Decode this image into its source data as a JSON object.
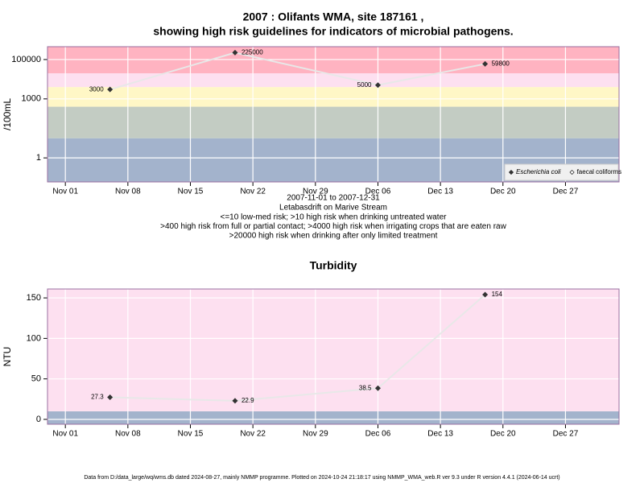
{
  "chart_data": [
    {
      "type": "line",
      "title": "2007 : Olifants WMA, site 187161 ,",
      "subtitle": "showing high risk guidelines for indicators of microbial pathogens.",
      "xlabel": "2007-11-01 to 2007-12-31",
      "notes": [
        "Letabasdrift on Marive Stream",
        "<=10 low-med risk; >10 high risk when drinking untreated water",
        ">400 high risk from full or partial contact; >4000 high risk when irrigating crops that are eaten raw",
        ">20000 high risk when drinking after only limited treatment"
      ],
      "ylabel": "/100mL",
      "log_y": true,
      "x": [
        "2007-11-06",
        "2007-11-20",
        "2007-12-06",
        "2007-12-18"
      ],
      "series": [
        {
          "name": "Escherichia coli",
          "color": "#333333",
          "values": [
            3000,
            225000,
            5000,
            59800
          ]
        },
        {
          "name": "faecal coliforms",
          "color": "#333333",
          "values": [
            null,
            null,
            null,
            null
          ]
        }
      ],
      "bands": [
        {
          "from": 0.06,
          "to": 10,
          "color": "#a3b3cc"
        },
        {
          "from": 10,
          "to": 400,
          "color": "#c3ccc3"
        },
        {
          "from": 400,
          "to": 4000,
          "color": "#fff7c6"
        },
        {
          "from": 4000,
          "to": 20000,
          "color": "#fde0f0"
        },
        {
          "from": 20000,
          "to": 450000,
          "color": "#ffb3c1"
        }
      ],
      "xlim": [
        "2007-10-30",
        "2008-01-02"
      ],
      "ylim": [
        0.06,
        450000
      ],
      "yticks": [
        1,
        1000,
        100000
      ],
      "xticks": [
        {
          "value": "2007-11-01",
          "label": "Nov 01"
        },
        {
          "value": "2007-11-08",
          "label": "Nov 08"
        },
        {
          "value": "2007-11-15",
          "label": "Nov 15"
        },
        {
          "value": "2007-11-22",
          "label": "Nov 22"
        },
        {
          "value": "2007-11-29",
          "label": "Nov 29"
        },
        {
          "value": "2007-12-06",
          "label": "Dec 06"
        },
        {
          "value": "2007-12-13",
          "label": "Dec 13"
        },
        {
          "value": "2007-12-20",
          "label": "Dec 20"
        },
        {
          "value": "2007-12-27",
          "label": "Dec 27"
        }
      ],
      "grid": true,
      "legend": "bottom-right"
    },
    {
      "type": "line",
      "title": "Turbidity",
      "ylabel": "NTU",
      "x": [
        "2007-11-06",
        "2007-11-20",
        "2007-12-06",
        "2007-12-18"
      ],
      "series": [
        {
          "name": "Turbidity",
          "color": "#333333",
          "values": [
            27.3,
            22.9,
            38.5,
            154
          ]
        }
      ],
      "bands": [
        {
          "from": -6,
          "to": 10,
          "color": "#a3b3cc"
        },
        {
          "from": 10,
          "to": 161,
          "color": "#fde0f0"
        }
      ],
      "xlim": [
        "2007-10-30",
        "2008-01-02"
      ],
      "ylim": [
        -6,
        161
      ],
      "yticks": [
        0,
        50,
        100,
        150
      ],
      "xticks": [
        {
          "value": "2007-11-01",
          "label": "Nov 01"
        },
        {
          "value": "2007-11-08",
          "label": "Nov 08"
        },
        {
          "value": "2007-11-15",
          "label": "Nov 15"
        },
        {
          "value": "2007-11-22",
          "label": "Nov 22"
        },
        {
          "value": "2007-11-29",
          "label": "Nov 29"
        },
        {
          "value": "2007-12-06",
          "label": "Dec 06"
        },
        {
          "value": "2007-12-13",
          "label": "Dec 13"
        },
        {
          "value": "2007-12-20",
          "label": "Dec 20"
        },
        {
          "value": "2007-12-27",
          "label": "Dec 27"
        }
      ],
      "grid": true
    }
  ],
  "footer": "Data from D:/data_large/wq/wms.db dated 2024-08-27, mainly NMMP programme. Plotted on 2024-10-24 21:18:17 using NMMP_WMA_web.R ver 9.3 under R version 4.4.1 (2024-06-14 ucrt)"
}
